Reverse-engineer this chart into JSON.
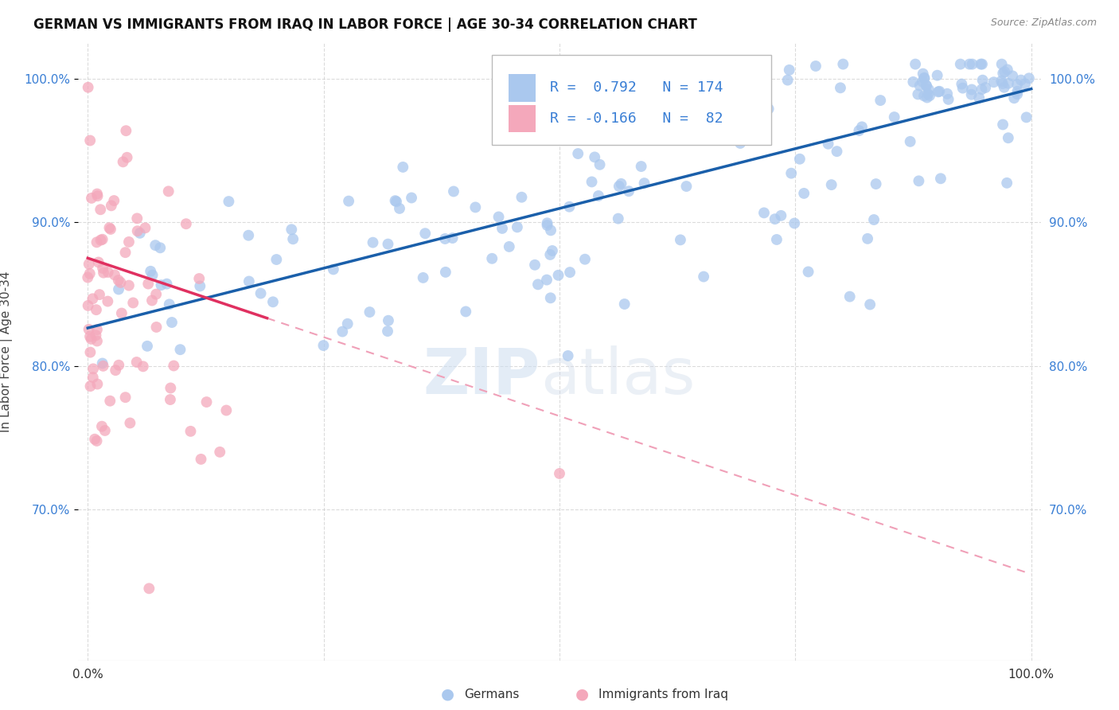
{
  "title": "GERMAN VS IMMIGRANTS FROM IRAQ IN LABOR FORCE | AGE 30-34 CORRELATION CHART",
  "source": "Source: ZipAtlas.com",
  "ylabel": "In Labor Force | Age 30-34",
  "ytick_labels": [
    "100.0%",
    "90.0%",
    "80.0%",
    "70.0%"
  ],
  "ytick_values": [
    1.0,
    0.9,
    0.8,
    0.7
  ],
  "xlim": [
    -0.01,
    1.01
  ],
  "ylim": [
    0.595,
    1.025
  ],
  "legend_r_blue": "0.792",
  "legend_n_blue": "174",
  "legend_r_pink": "-0.166",
  "legend_n_pink": "82",
  "legend_label_blue": "Germans",
  "legend_label_pink": "Immigrants from Iraq",
  "blue_color": "#aac8ee",
  "pink_color": "#f4a8bb",
  "trend_blue_color": "#1a5faa",
  "trend_pink_color": "#e03060",
  "trend_pink_dash_color": "#f0a0b8",
  "blue_marker_size": 100,
  "pink_marker_size": 100
}
